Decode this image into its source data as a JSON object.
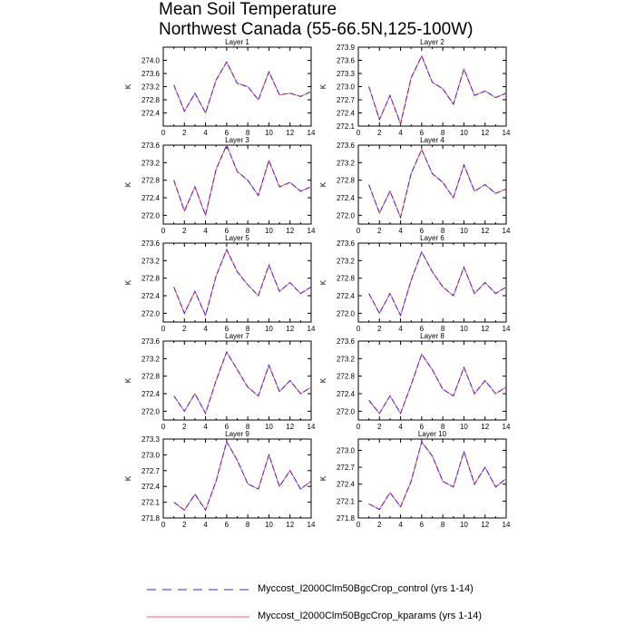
{
  "title": {
    "line1": "Mean Soil Temperature",
    "line2": "Northwest Canada (55-66.5N,125-100W)"
  },
  "colors": {
    "control": "#4b1fd6",
    "kparams": "#ff5a7a",
    "axis": "#000000"
  },
  "legend": [
    {
      "label": "Myccost_I2000Clm50BgcCrop_control (yrs 1-14)",
      "style": "dashed",
      "color": "#4b1fd6"
    },
    {
      "label": "Myccost_I2000Clm50BgcCrop_kparams (yrs 1-14)",
      "style": "solid",
      "color": "#ff5a7a"
    }
  ],
  "chart_data": [
    {
      "type": "line",
      "title": "Layer 1",
      "ylabel": "K",
      "x": [
        1,
        2,
        3,
        4,
        5,
        6,
        7,
        8,
        9,
        10,
        11,
        12,
        13,
        14
      ],
      "xlim": [
        0,
        14
      ],
      "xticks": [
        0,
        2,
        4,
        6,
        8,
        10,
        12,
        14
      ],
      "ylim": [
        272.0,
        274.4
      ],
      "yticks": [
        272.4,
        272.8,
        273.2,
        273.6,
        274.0
      ],
      "yticklabels": [
        "272.4",
        "272.8",
        "273.2",
        "273.6",
        "274.0"
      ],
      "series": [
        {
          "name": "Myccost_I2000Clm50BgcCrop_control (yrs 1-14)",
          "values": [
            273.25,
            272.45,
            273.0,
            272.4,
            273.4,
            273.95,
            273.3,
            273.2,
            272.8,
            273.65,
            272.95,
            273.0,
            272.9,
            273.05
          ]
        },
        {
          "name": "Myccost_I2000Clm50BgcCrop_kparams (yrs 1-14)",
          "values": [
            273.25,
            272.45,
            273.0,
            272.4,
            273.4,
            273.95,
            273.3,
            273.2,
            272.8,
            273.65,
            272.95,
            273.0,
            272.9,
            273.05
          ]
        }
      ]
    },
    {
      "type": "line",
      "title": "Layer 2",
      "ylabel": "K",
      "x": [
        1,
        2,
        3,
        4,
        5,
        6,
        7,
        8,
        9,
        10,
        11,
        12,
        13,
        14
      ],
      "xlim": [
        0,
        14
      ],
      "xticks": [
        0,
        2,
        4,
        6,
        8,
        10,
        12,
        14
      ],
      "ylim": [
        272.1,
        273.9
      ],
      "yticks": [
        272.1,
        272.4,
        272.7,
        273.0,
        273.3,
        273.6,
        273.9
      ],
      "yticklabels": [
        "272.1",
        "272.4",
        "272.7",
        "273.0",
        "273.3",
        "273.6",
        "273.9"
      ],
      "series": [
        {
          "name": "Myccost_I2000Clm50BgcCrop_control (yrs 1-14)",
          "values": [
            273.0,
            272.25,
            272.8,
            272.15,
            273.2,
            273.7,
            273.1,
            272.95,
            272.6,
            273.4,
            272.8,
            272.9,
            272.75,
            272.85
          ]
        },
        {
          "name": "Myccost_I2000Clm50BgcCrop_kparams (yrs 1-14)",
          "values": [
            273.0,
            272.25,
            272.8,
            272.15,
            273.2,
            273.7,
            273.1,
            272.95,
            272.6,
            273.4,
            272.8,
            272.9,
            272.75,
            272.85
          ]
        }
      ]
    },
    {
      "type": "line",
      "title": "Layer 3",
      "ylabel": "K",
      "x": [
        1,
        2,
        3,
        4,
        5,
        6,
        7,
        8,
        9,
        10,
        11,
        12,
        13,
        14
      ],
      "xlim": [
        0,
        14
      ],
      "xticks": [
        0,
        2,
        4,
        6,
        8,
        10,
        12,
        14
      ],
      "ylim": [
        271.8,
        273.6
      ],
      "yticks": [
        272.0,
        272.4,
        272.8,
        273.2,
        273.6
      ],
      "yticklabels": [
        "272.0",
        "272.4",
        "272.8",
        "273.2",
        "273.6"
      ],
      "series": [
        {
          "name": "Myccost_I2000Clm50BgcCrop_control (yrs 1-14)",
          "values": [
            272.8,
            272.1,
            272.65,
            272.0,
            273.05,
            273.6,
            273.0,
            272.8,
            272.45,
            273.25,
            272.65,
            272.75,
            272.55,
            272.65
          ]
        },
        {
          "name": "Myccost_I2000Clm50BgcCrop_kparams (yrs 1-14)",
          "values": [
            272.8,
            272.1,
            272.65,
            272.0,
            273.05,
            273.6,
            273.0,
            272.8,
            272.45,
            273.25,
            272.65,
            272.75,
            272.55,
            272.65
          ]
        }
      ]
    },
    {
      "type": "line",
      "title": "Layer 4",
      "ylabel": "K",
      "x": [
        1,
        2,
        3,
        4,
        5,
        6,
        7,
        8,
        9,
        10,
        11,
        12,
        13,
        14
      ],
      "xlim": [
        0,
        14
      ],
      "xticks": [
        0,
        2,
        4,
        6,
        8,
        10,
        12,
        14
      ],
      "ylim": [
        271.8,
        273.6
      ],
      "yticks": [
        272.0,
        272.4,
        272.8,
        273.2,
        273.6
      ],
      "yticklabels": [
        "272.0",
        "272.4",
        "272.8",
        "273.2",
        "273.6"
      ],
      "series": [
        {
          "name": "Myccost_I2000Clm50BgcCrop_control (yrs 1-14)",
          "values": [
            272.7,
            272.05,
            272.55,
            271.95,
            272.95,
            273.5,
            272.95,
            272.75,
            272.4,
            273.15,
            272.55,
            272.7,
            272.5,
            272.6
          ]
        },
        {
          "name": "Myccost_I2000Clm50BgcCrop_kparams (yrs 1-14)",
          "values": [
            272.7,
            272.05,
            272.55,
            271.95,
            272.95,
            273.5,
            272.95,
            272.75,
            272.4,
            273.15,
            272.55,
            272.7,
            272.5,
            272.6
          ]
        }
      ]
    },
    {
      "type": "line",
      "title": "Layer 5",
      "ylabel": "K",
      "x": [
        1,
        2,
        3,
        4,
        5,
        6,
        7,
        8,
        9,
        10,
        11,
        12,
        13,
        14
      ],
      "xlim": [
        0,
        14
      ],
      "xticks": [
        0,
        2,
        4,
        6,
        8,
        10,
        12,
        14
      ],
      "ylim": [
        271.8,
        273.6
      ],
      "yticks": [
        272.0,
        272.4,
        272.8,
        273.2,
        273.6
      ],
      "yticklabels": [
        "272.0",
        "272.4",
        "272.8",
        "273.2",
        "273.6"
      ],
      "series": [
        {
          "name": "Myccost_I2000Clm50BgcCrop_control (yrs 1-14)",
          "values": [
            272.6,
            272.0,
            272.5,
            271.95,
            272.85,
            273.45,
            272.95,
            272.65,
            272.4,
            273.1,
            272.5,
            272.7,
            272.45,
            272.6
          ]
        },
        {
          "name": "Myccost_I2000Clm50BgcCrop_kparams (yrs 1-14)",
          "values": [
            272.6,
            272.0,
            272.5,
            271.95,
            272.85,
            273.45,
            272.95,
            272.65,
            272.4,
            273.1,
            272.5,
            272.7,
            272.45,
            272.6
          ]
        }
      ]
    },
    {
      "type": "line",
      "title": "Layer 6",
      "ylabel": "K",
      "x": [
        1,
        2,
        3,
        4,
        5,
        6,
        7,
        8,
        9,
        10,
        11,
        12,
        13,
        14
      ],
      "xlim": [
        0,
        14
      ],
      "xticks": [
        0,
        2,
        4,
        6,
        8,
        10,
        12,
        14
      ],
      "ylim": [
        271.8,
        273.6
      ],
      "yticks": [
        272.0,
        272.4,
        272.8,
        273.2,
        273.6
      ],
      "yticklabels": [
        "272.0",
        "272.4",
        "272.8",
        "273.2",
        "273.6"
      ],
      "series": [
        {
          "name": "Myccost_I2000Clm50BgcCrop_control (yrs 1-14)",
          "values": [
            272.45,
            272.0,
            272.45,
            271.95,
            272.75,
            273.4,
            272.95,
            272.6,
            272.4,
            273.05,
            272.45,
            272.7,
            272.45,
            272.6
          ]
        },
        {
          "name": "Myccost_I2000Clm50BgcCrop_kparams (yrs 1-14)",
          "values": [
            272.45,
            272.0,
            272.45,
            271.95,
            272.75,
            273.4,
            272.95,
            272.6,
            272.4,
            273.05,
            272.45,
            272.7,
            272.45,
            272.6
          ]
        }
      ]
    },
    {
      "type": "line",
      "title": "Layer 7",
      "ylabel": "K",
      "x": [
        1,
        2,
        3,
        4,
        5,
        6,
        7,
        8,
        9,
        10,
        11,
        12,
        13,
        14
      ],
      "xlim": [
        0,
        14
      ],
      "xticks": [
        0,
        2,
        4,
        6,
        8,
        10,
        12,
        14
      ],
      "ylim": [
        271.8,
        273.6
      ],
      "yticks": [
        272.0,
        272.4,
        272.8,
        273.2,
        273.6
      ],
      "yticklabels": [
        "272.0",
        "272.4",
        "272.8",
        "273.2",
        "273.6"
      ],
      "series": [
        {
          "name": "Myccost_I2000Clm50BgcCrop_control (yrs 1-14)",
          "values": [
            272.35,
            272.0,
            272.4,
            271.95,
            272.7,
            273.35,
            272.95,
            272.55,
            272.35,
            273.05,
            272.45,
            272.7,
            272.4,
            272.55
          ]
        },
        {
          "name": "Myccost_I2000Clm50BgcCrop_kparams (yrs 1-14)",
          "values": [
            272.35,
            272.0,
            272.4,
            271.95,
            272.7,
            273.35,
            272.95,
            272.55,
            272.35,
            273.05,
            272.45,
            272.7,
            272.4,
            272.55
          ]
        }
      ]
    },
    {
      "type": "line",
      "title": "Layer 8",
      "ylabel": "K",
      "x": [
        1,
        2,
        3,
        4,
        5,
        6,
        7,
        8,
        9,
        10,
        11,
        12,
        13,
        14
      ],
      "xlim": [
        0,
        14
      ],
      "xticks": [
        0,
        2,
        4,
        6,
        8,
        10,
        12,
        14
      ],
      "ylim": [
        271.8,
        273.6
      ],
      "yticks": [
        272.0,
        272.4,
        272.8,
        273.2,
        273.6
      ],
      "yticklabels": [
        "272.0",
        "272.4",
        "272.8",
        "273.2",
        "273.6"
      ],
      "series": [
        {
          "name": "Myccost_I2000Clm50BgcCrop_control (yrs 1-14)",
          "values": [
            272.25,
            271.95,
            272.35,
            271.95,
            272.6,
            273.3,
            272.95,
            272.5,
            272.35,
            273.0,
            272.4,
            272.7,
            272.4,
            272.55
          ]
        },
        {
          "name": "Myccost_I2000Clm50BgcCrop_kparams (yrs 1-14)",
          "values": [
            272.25,
            271.95,
            272.35,
            271.95,
            272.6,
            273.3,
            272.95,
            272.5,
            272.35,
            273.0,
            272.4,
            272.7,
            272.4,
            272.55
          ]
        }
      ]
    },
    {
      "type": "line",
      "title": "Layer 9",
      "ylabel": "K",
      "x": [
        1,
        2,
        3,
        4,
        5,
        6,
        7,
        8,
        9,
        10,
        11,
        12,
        13,
        14
      ],
      "xlim": [
        0,
        14
      ],
      "xticks": [
        0,
        2,
        4,
        6,
        8,
        10,
        12,
        14
      ],
      "ylim": [
        271.8,
        273.3
      ],
      "yticks": [
        271.8,
        272.1,
        272.4,
        272.7,
        273.0,
        273.3
      ],
      "yticklabels": [
        "271.8",
        "272.1",
        "272.4",
        "272.7",
        "273.0",
        "273.3"
      ],
      "series": [
        {
          "name": "Myccost_I2000Clm50BgcCrop_control (yrs 1-14)",
          "values": [
            272.1,
            271.95,
            272.25,
            271.95,
            272.5,
            273.25,
            272.9,
            272.45,
            272.35,
            273.0,
            272.4,
            272.7,
            272.35,
            272.5
          ]
        },
        {
          "name": "Myccost_I2000Clm50BgcCrop_kparams (yrs 1-14)",
          "values": [
            272.1,
            271.95,
            272.25,
            271.95,
            272.5,
            273.25,
            272.9,
            272.45,
            272.35,
            273.0,
            272.4,
            272.7,
            272.35,
            272.5
          ]
        }
      ]
    },
    {
      "type": "line",
      "title": "Layer 10",
      "ylabel": "K",
      "x": [
        1,
        2,
        3,
        4,
        5,
        6,
        7,
        8,
        9,
        10,
        11,
        12,
        13,
        14
      ],
      "xlim": [
        0,
        14
      ],
      "xticks": [
        0,
        2,
        4,
        6,
        8,
        10,
        12,
        14
      ],
      "ylim": [
        271.8,
        273.2
      ],
      "yticks": [
        271.8,
        272.1,
        272.4,
        272.7,
        273.0
      ],
      "yticklabels": [
        "271.8",
        "272.1",
        "272.4",
        "272.7",
        "273.0"
      ],
      "series": [
        {
          "name": "Myccost_I2000Clm50BgcCrop_control (yrs 1-14)",
          "values": [
            272.05,
            271.95,
            272.25,
            272.0,
            272.45,
            273.15,
            272.9,
            272.45,
            272.35,
            272.98,
            272.4,
            272.7,
            272.35,
            272.5
          ]
        },
        {
          "name": "Myccost_I2000Clm50BgcCrop_kparams (yrs 1-14)",
          "values": [
            272.05,
            271.95,
            272.25,
            272.0,
            272.45,
            273.15,
            272.9,
            272.45,
            272.35,
            272.98,
            272.4,
            272.7,
            272.35,
            272.5
          ]
        }
      ]
    }
  ]
}
